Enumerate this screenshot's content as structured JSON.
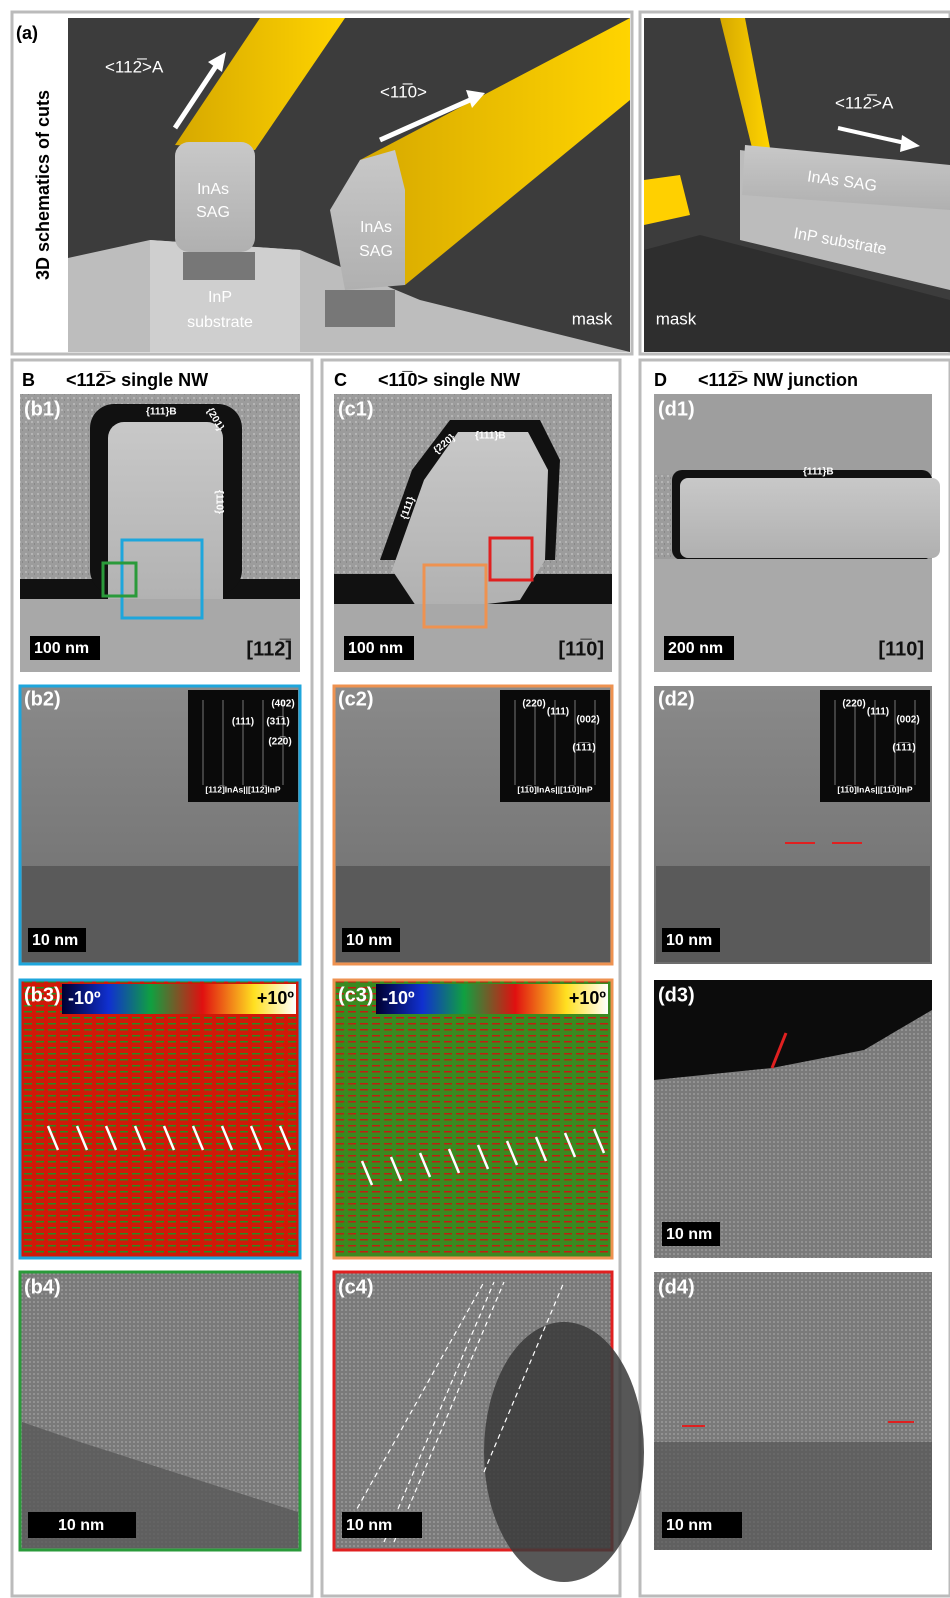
{
  "panel_a": {
    "label": "(a)",
    "side_title": "3D schematics of cuts",
    "direction_1": "<112̅>A",
    "direction_2": "<11̅0>",
    "direction_3": "<112̅>A",
    "nw1": [
      "InAs",
      "SAG"
    ],
    "nw2": [
      "InAs",
      "SAG"
    ],
    "nw3": "InAs SAG",
    "substrate_1": [
      "InP",
      "substrate"
    ],
    "substrate_2": "InP substrate",
    "mask_1": "mask",
    "mask_2": "mask"
  },
  "column_b": {
    "heading": "B",
    "title": "<112̅> single NW",
    "p1": {
      "label": "(b1)",
      "facets": [
        "{111}B",
        "{201}",
        "{110}"
      ],
      "scale": "100 nm",
      "zone": "[112̅]"
    },
    "p2": {
      "label": "(b2)",
      "spots": [
        "(402)",
        "(111)",
        "(31̅1)",
        "(22̅0)"
      ],
      "zone": "[112̅]InAs||[112̅]InP",
      "scale": "10 nm"
    },
    "p3": {
      "label": "(b3)",
      "color_min": "-10º",
      "color_max": "+10º"
    },
    "p4": {
      "label": "(b4)",
      "scale": "10 nm"
    }
  },
  "column_c": {
    "heading": "C",
    "title": "<11̅0> single NW",
    "p1": {
      "label": "(c1)",
      "facets": [
        "{220}",
        "{111}B",
        "{111}"
      ],
      "scale": "100 nm",
      "zone": "[11̅0]"
    },
    "p2": {
      "label": "(c2)",
      "spots": [
        "(220)",
        "(111)",
        "(002)",
        "(1̅1̅1)"
      ],
      "zone": "[11̅0]InAs||[11̅0]InP",
      "scale": "10 nm"
    },
    "p3": {
      "label": "(c3)",
      "color_min": "-10º",
      "color_max": "+10º"
    },
    "p4": {
      "label": "(c4)",
      "scale": "10 nm"
    }
  },
  "column_d": {
    "heading": "D",
    "title": "<112̅> NW junction",
    "p1": {
      "label": "(d1)",
      "facets": [
        "{111}B"
      ],
      "scale": "200 nm",
      "zone": "[110]"
    },
    "p2": {
      "label": "(d2)",
      "spots": [
        "(220)",
        "(111)",
        "(002)",
        "(1̅1̅1)"
      ],
      "zone": "[11̅0]InAs||[11̅0]InP",
      "scale": "10 nm"
    },
    "p3": {
      "label": "(d3)",
      "scale": "10 nm"
    },
    "p4": {
      "label": "(d4)",
      "scale": "10 nm"
    }
  }
}
